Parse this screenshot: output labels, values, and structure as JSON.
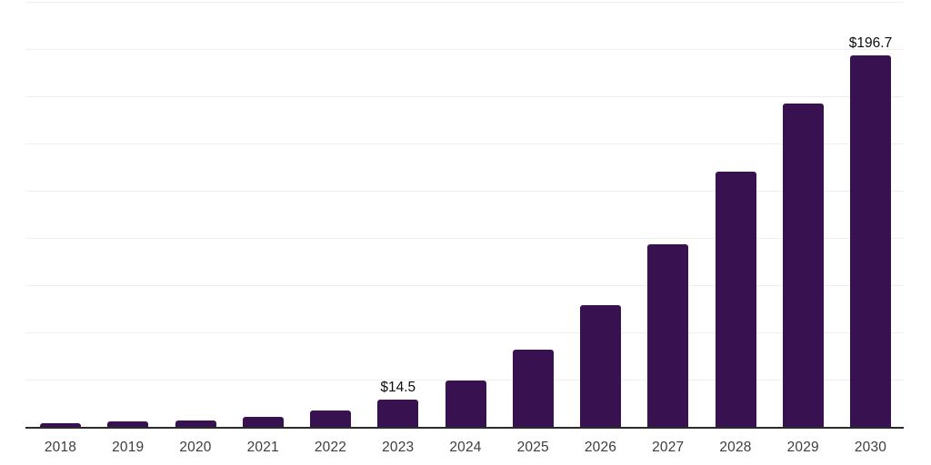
{
  "chart_data": {
    "type": "bar",
    "title": "",
    "xlabel": "",
    "ylabel": "",
    "categories": [
      "2018",
      "2019",
      "2020",
      "2021",
      "2022",
      "2023",
      "2024",
      "2025",
      "2026",
      "2027",
      "2028",
      "2029",
      "2030"
    ],
    "values": [
      2.1,
      3.0,
      3.6,
      5.4,
      8.7,
      14.5,
      24.8,
      40.9,
      64.8,
      96.6,
      135.1,
      171.4,
      196.7
    ],
    "data_labels": [
      "",
      "",
      "",
      "",
      "",
      "$14.5",
      "",
      "",
      "",
      "",
      "",
      "",
      "$196.7"
    ],
    "currency_prefix": "$",
    "ylim": [
      0,
      225
    ],
    "gridline_step": 25,
    "grid": true,
    "legend": false,
    "colors": {
      "bar": "#371150",
      "gridline": "#efefef",
      "axis_line": "#2b2b2b",
      "tick_label": "#3d3d3d",
      "data_label": "#0d0d0d",
      "background": "#ffffff"
    }
  }
}
